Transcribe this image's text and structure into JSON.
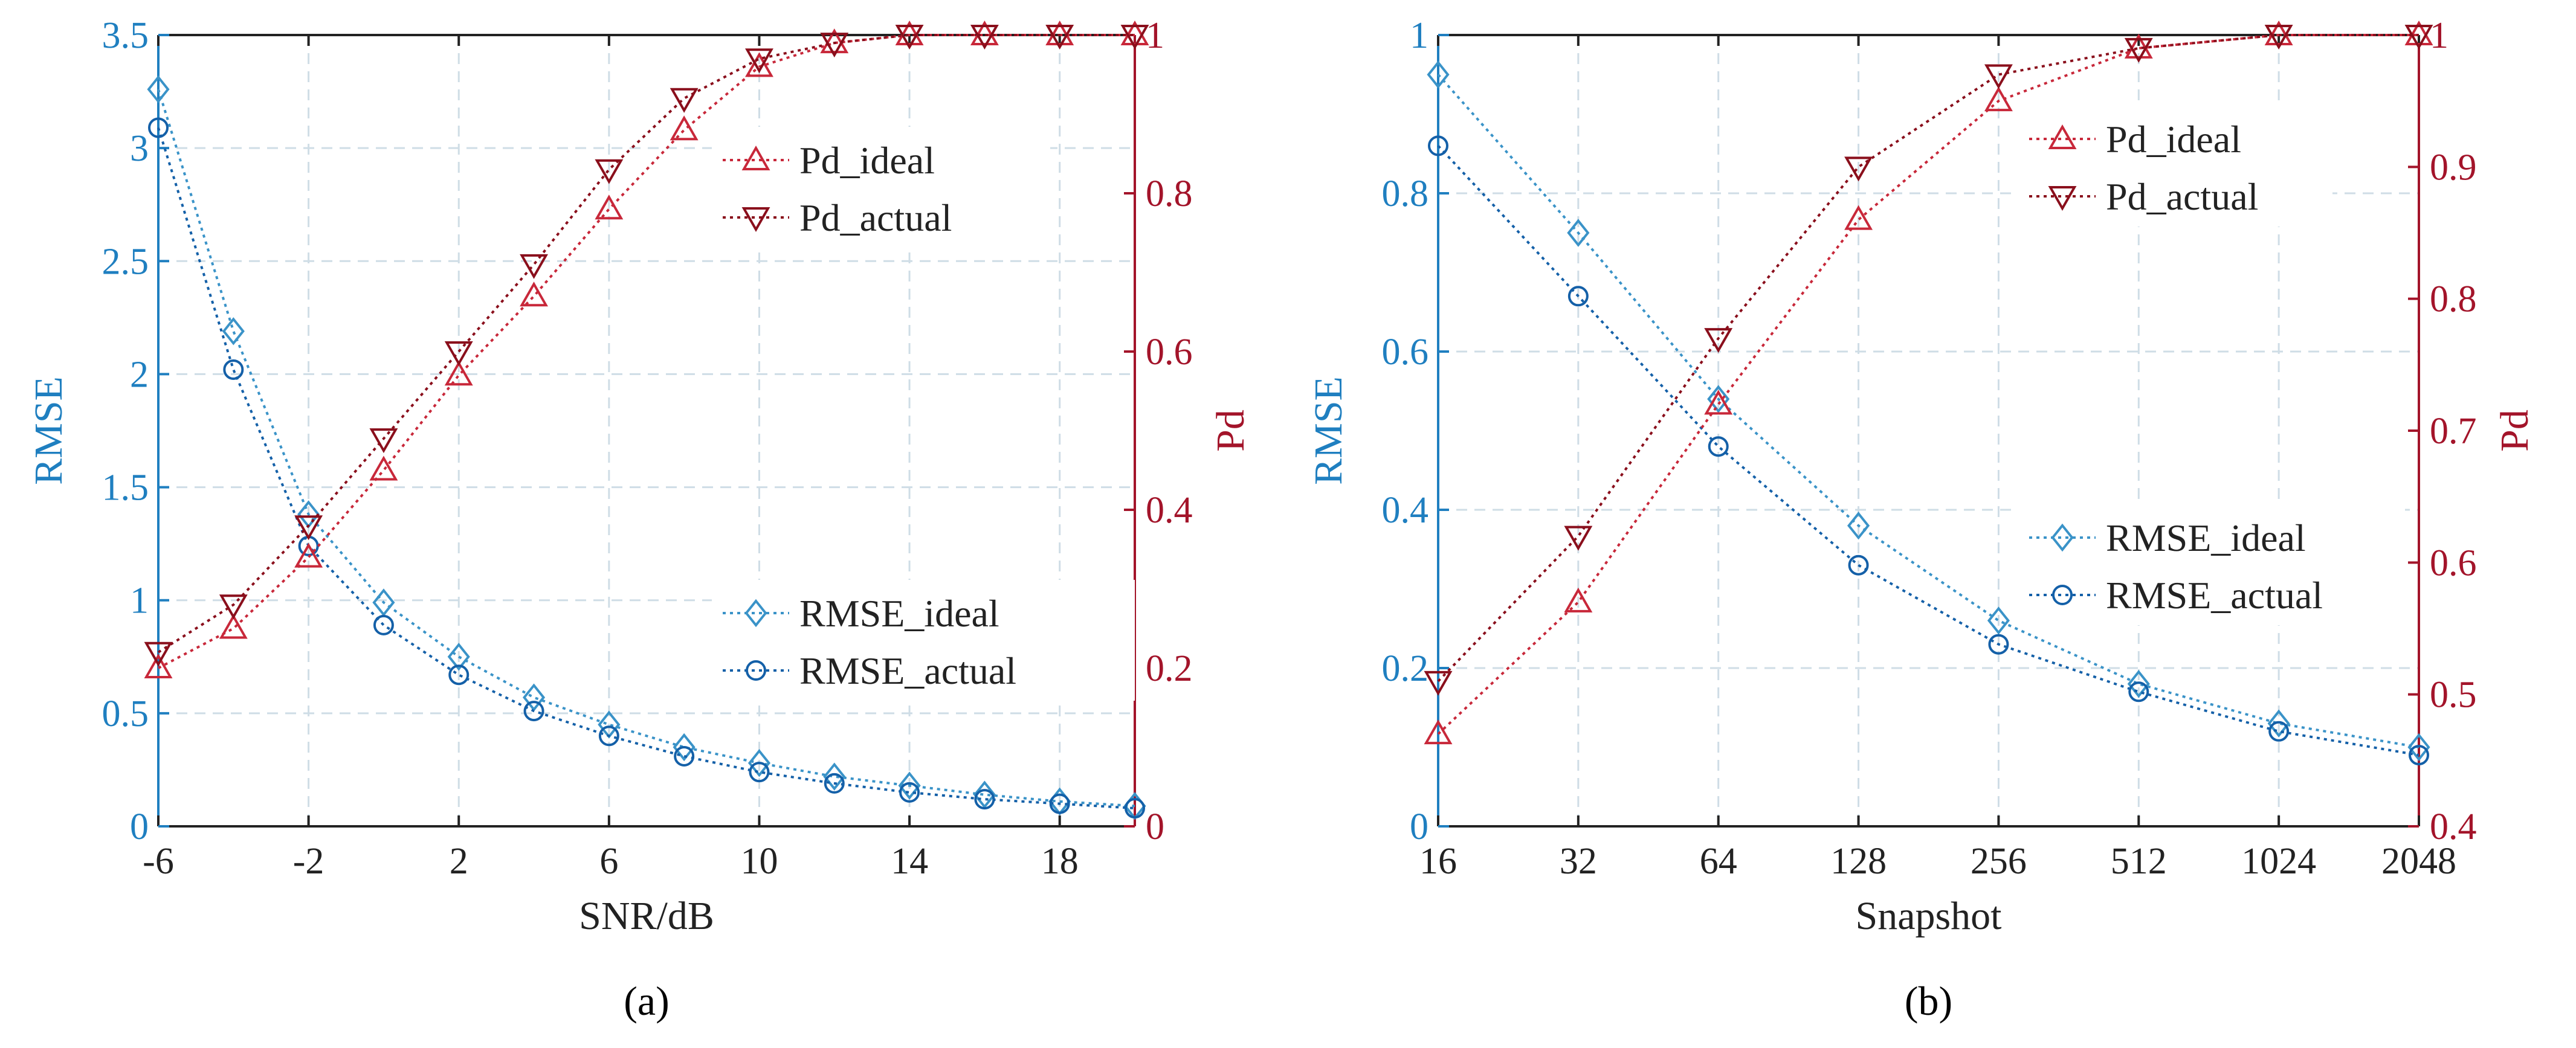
{
  "figure": {
    "panel_labels": [
      "(a)",
      "(b)"
    ]
  },
  "colors": {
    "rmse_ideal": "#3a93c8",
    "rmse_actual": "#1460a8",
    "pd_ideal": "#c8283a",
    "pd_actual": "#8a0f1c",
    "left_axis": "#1f7fc0",
    "right_axis": "#a3142a",
    "grid": "#cfdde6"
  },
  "chart_data": [
    {
      "type": "line",
      "panel": "a",
      "xlabel": "SNR/dB",
      "ylabel_left": "RMSE",
      "ylabel_right": "Pd",
      "xlim": [
        -6,
        20
      ],
      "xticks": [
        -6,
        -2,
        2,
        6,
        10,
        14,
        18
      ],
      "xtick_labels": [
        "-6",
        "-2",
        "2",
        "6",
        "10",
        "14",
        "18"
      ],
      "ylim_left": [
        0,
        3.5
      ],
      "yticks_left": [
        "0",
        "0.5",
        "1",
        "1.5",
        "2",
        "2.5",
        "3",
        "3.5"
      ],
      "ylim_right": [
        0,
        1
      ],
      "yticks_right": [
        "0",
        "0.2",
        "0.4",
        "0.6",
        "0.8",
        "1"
      ],
      "x": [
        -6,
        -4,
        -2,
        0,
        2,
        4,
        6,
        8,
        10,
        12,
        14,
        16,
        18,
        20
      ],
      "series": [
        {
          "name": "RMSE_ideal",
          "axis": "left",
          "marker": "diamond",
          "values": [
            3.26,
            2.19,
            1.38,
            0.99,
            0.75,
            0.57,
            0.45,
            0.35,
            0.28,
            0.22,
            0.18,
            0.14,
            0.11,
            0.09
          ]
        },
        {
          "name": "RMSE_actual",
          "axis": "left",
          "marker": "circle",
          "values": [
            3.09,
            2.02,
            1.24,
            0.89,
            0.67,
            0.51,
            0.4,
            0.31,
            0.24,
            0.19,
            0.15,
            0.12,
            0.1,
            0.08
          ]
        },
        {
          "name": "Pd_ideal",
          "axis": "right",
          "marker": "triangle-up",
          "values": [
            0.2,
            0.25,
            0.34,
            0.45,
            0.57,
            0.67,
            0.78,
            0.88,
            0.96,
            0.99,
            1.0,
            1.0,
            1.0,
            1.0
          ]
        },
        {
          "name": "Pd_actual",
          "axis": "right",
          "marker": "triangle-down",
          "values": [
            0.22,
            0.28,
            0.38,
            0.49,
            0.6,
            0.71,
            0.83,
            0.92,
            0.97,
            0.99,
            1.0,
            1.0,
            1.0,
            1.0
          ]
        }
      ],
      "legend_top": [
        "Pd_ideal",
        "Pd_actual"
      ],
      "legend_bottom": [
        "RMSE_ideal",
        "RMSE_actual"
      ]
    },
    {
      "type": "line",
      "panel": "b",
      "xlabel": "Snapshot",
      "ylabel_left": "RMSE",
      "ylabel_right": "Pd",
      "xlim": [
        0,
        7
      ],
      "xticks": [
        0,
        1,
        2,
        3,
        4,
        5,
        6,
        7
      ],
      "xtick_labels": [
        "16",
        "32",
        "64",
        "128",
        "256",
        "512",
        "1024",
        "2048"
      ],
      "ylim_left": [
        0,
        1
      ],
      "yticks_left": [
        "0",
        "0.2",
        "0.4",
        "0.6",
        "0.8",
        "1"
      ],
      "ylim_right": [
        0.4,
        1
      ],
      "yticks_right": [
        "0.4",
        "0.5",
        "0.6",
        "0.7",
        "0.8",
        "0.9",
        "1"
      ],
      "x": [
        0,
        1,
        2,
        3,
        4,
        5,
        6,
        7
      ],
      "series": [
        {
          "name": "RMSE_ideal",
          "axis": "left",
          "marker": "diamond",
          "values": [
            0.95,
            0.75,
            0.54,
            0.38,
            0.26,
            0.18,
            0.13,
            0.1
          ]
        },
        {
          "name": "RMSE_actual",
          "axis": "left",
          "marker": "circle",
          "values": [
            0.86,
            0.67,
            0.48,
            0.33,
            0.23,
            0.17,
            0.12,
            0.09
          ]
        },
        {
          "name": "Pd_ideal",
          "axis": "right",
          "marker": "triangle-up",
          "values": [
            0.47,
            0.57,
            0.72,
            0.86,
            0.95,
            0.99,
            1.0,
            1.0
          ]
        },
        {
          "name": "Pd_actual",
          "axis": "right",
          "marker": "triangle-down",
          "values": [
            0.51,
            0.62,
            0.77,
            0.9,
            0.97,
            0.99,
            1.0,
            1.0
          ]
        }
      ],
      "legend_top": [
        "Pd_ideal",
        "Pd_actual"
      ],
      "legend_bottom": [
        "RMSE_ideal",
        "RMSE_actual"
      ]
    }
  ]
}
